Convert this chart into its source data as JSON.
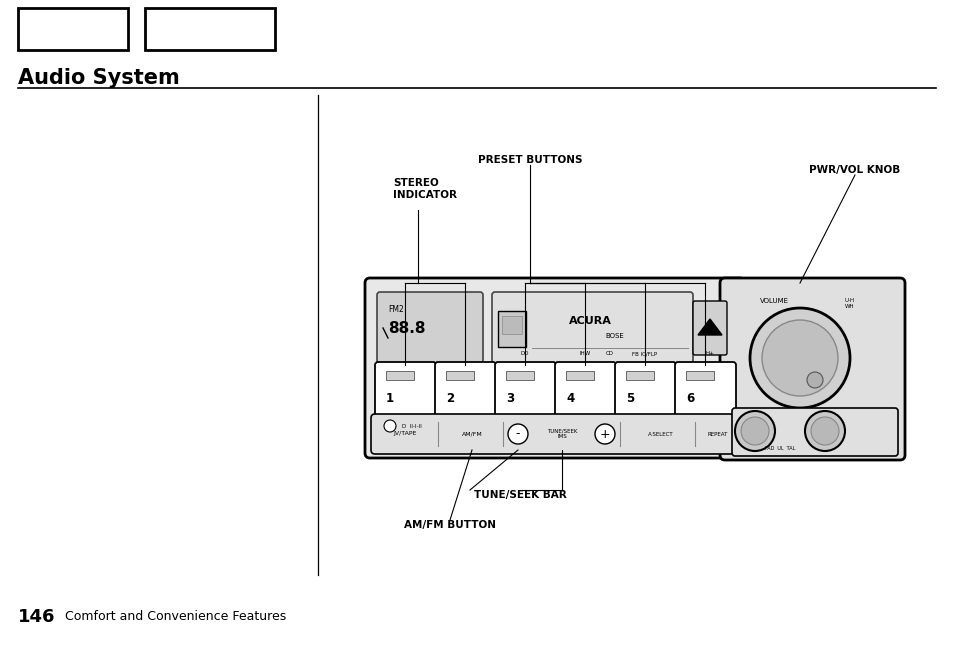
{
  "title": "Audio System",
  "page_number": "146",
  "page_subtitle": "Comfort and Convenience Features",
  "bg_color": "#ffffff",
  "title_fontsize": 15,
  "labels": {
    "stereo_indicator": "STEREO\nINDICATOR",
    "preset_buttons": "PRESET BUTTONS",
    "pwr_vol_knob": "PWR/VOL KNOB",
    "tune_seek_bar": "TUNE/SEEK BAR",
    "am_fm_button": "AM/FM BUTTON"
  }
}
